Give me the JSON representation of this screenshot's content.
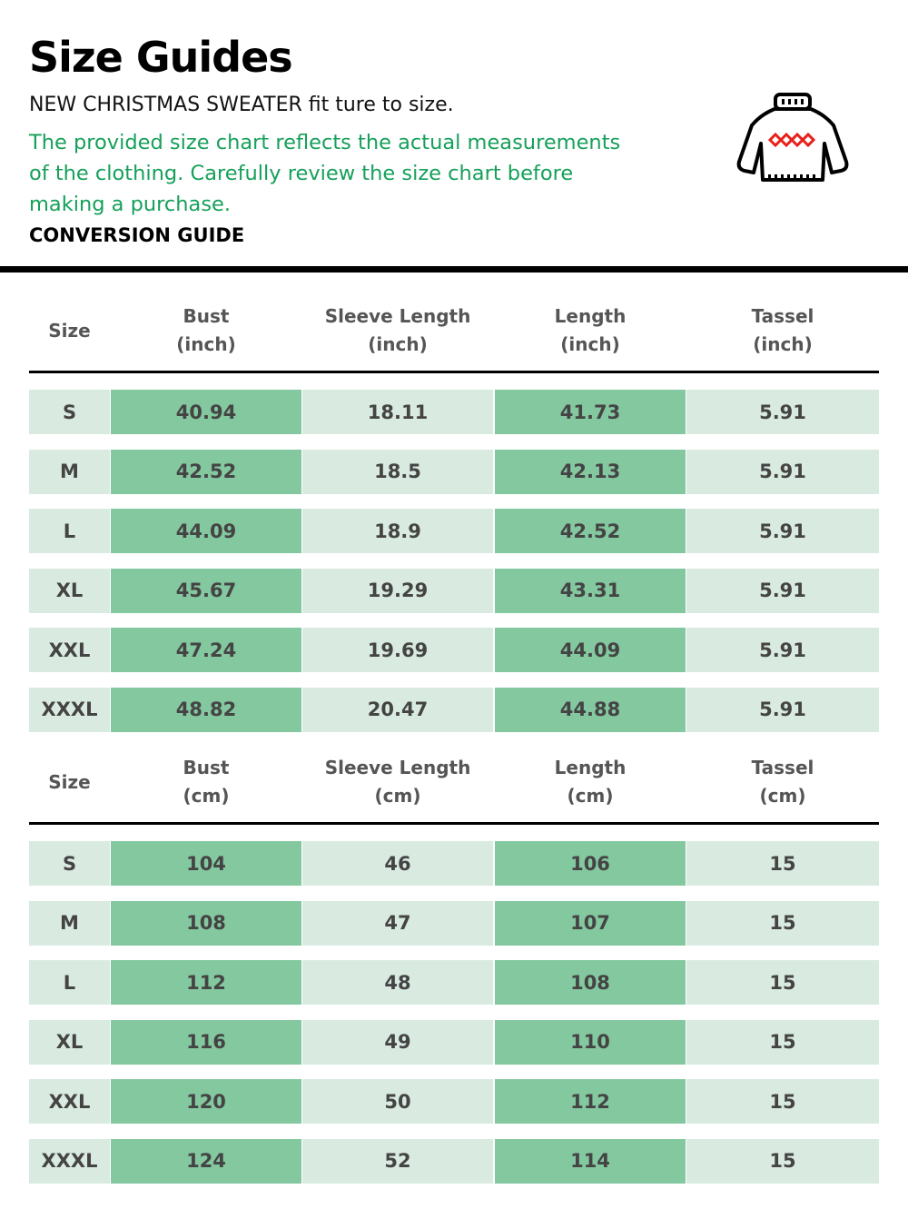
{
  "title": "Size Guides",
  "subtitle": "NEW CHRISTMAS SWEATER fit ture to size.",
  "note": "The provided size chart reflects the actual measurements of the clothing. Carefully review the size chart before making a purchase.",
  "conversion_label": "CONVERSION GUIDE",
  "icon": "christmas-sweater-icon",
  "colors": {
    "accent_text": "#16a05a",
    "cell_light": "#d9ebe0",
    "cell_dark": "#84c8a0"
  },
  "tables": [
    {
      "headers": [
        "Size",
        "Bust\n(inch)",
        "Sleeve Length\n(inch)",
        "Length\n(inch)",
        "Tassel\n(inch)"
      ],
      "rows": [
        [
          "S",
          "40.94",
          "18.11",
          "41.73",
          "5.91"
        ],
        [
          "M",
          "42.52",
          "18.5",
          "42.13",
          "5.91"
        ],
        [
          "L",
          "44.09",
          "18.9",
          "42.52",
          "5.91"
        ],
        [
          "XL",
          "45.67",
          "19.29",
          "43.31",
          "5.91"
        ],
        [
          "XXL",
          "47.24",
          "19.69",
          "44.09",
          "5.91"
        ],
        [
          "XXXL",
          "48.82",
          "20.47",
          "44.88",
          "5.91"
        ]
      ]
    },
    {
      "headers": [
        "Size",
        "Bust\n(cm)",
        "Sleeve Length\n(cm)",
        "Length\n(cm)",
        "Tassel\n(cm)"
      ],
      "rows": [
        [
          "S",
          "104",
          "46",
          "106",
          "15"
        ],
        [
          "M",
          "108",
          "47",
          "107",
          "15"
        ],
        [
          "L",
          "112",
          "48",
          "108",
          "15"
        ],
        [
          "XL",
          "116",
          "49",
          "110",
          "15"
        ],
        [
          "XXL",
          "120",
          "50",
          "112",
          "15"
        ],
        [
          "XXXL",
          "124",
          "52",
          "114",
          "15"
        ]
      ]
    }
  ]
}
